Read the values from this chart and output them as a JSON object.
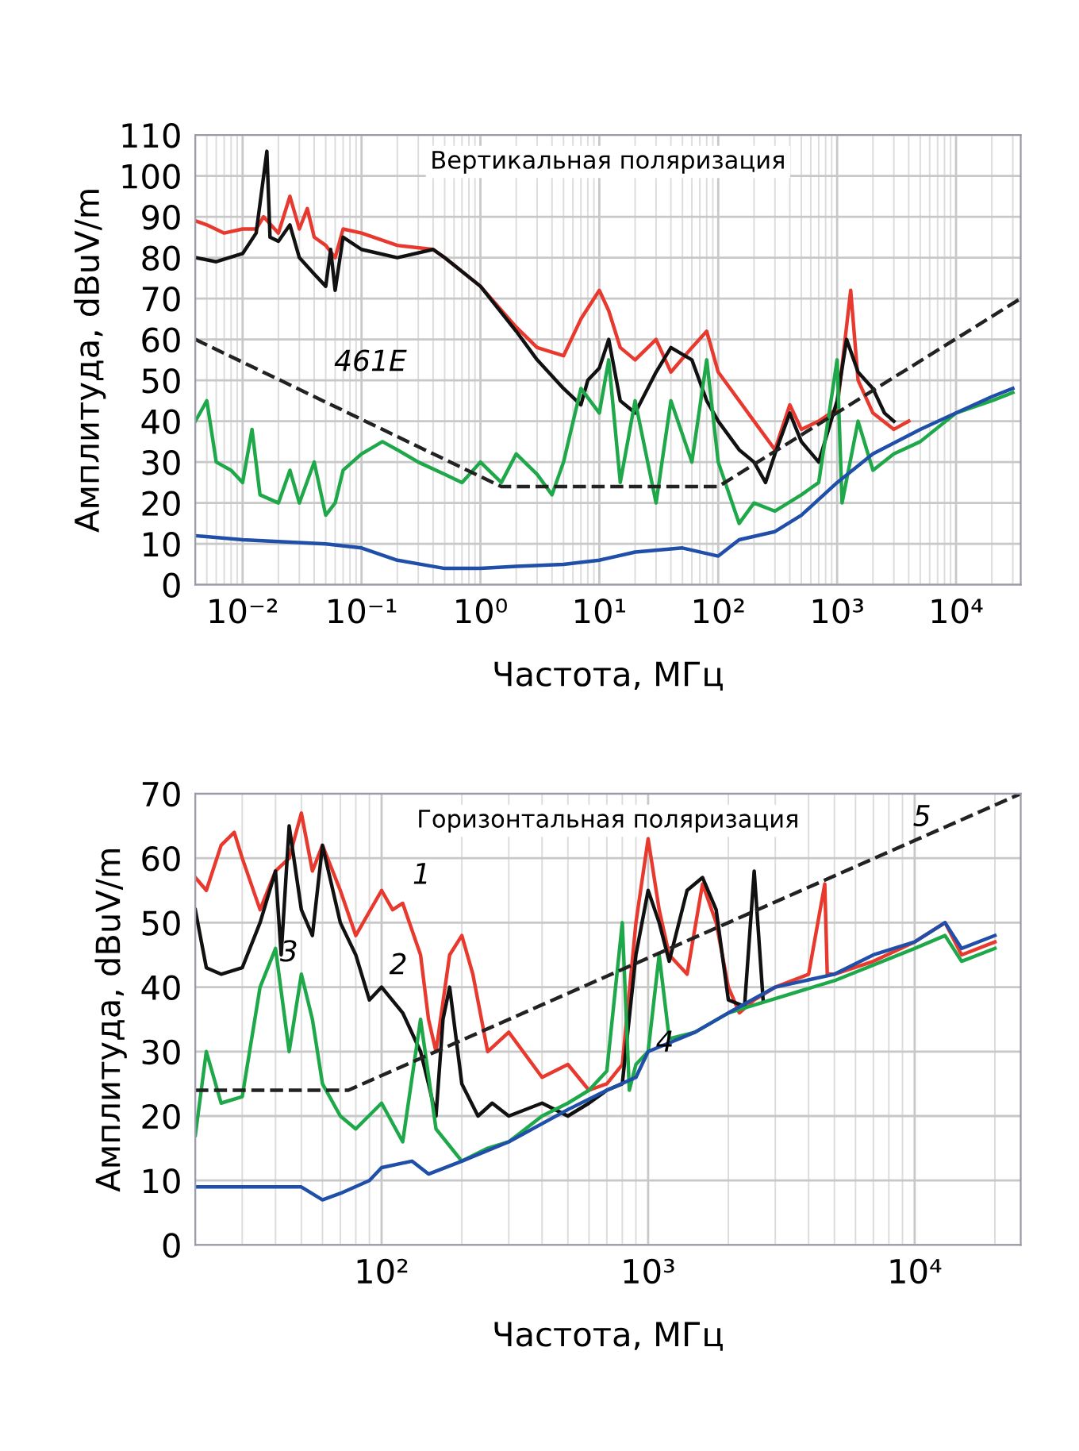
{
  "chart_data": [
    {
      "type": "line",
      "title": "Вертикальная поляризация",
      "xlabel": "Частота, МГц",
      "ylabel": "Амплитуда, dBuV/m",
      "log": "x",
      "grid": true,
      "marker": "none",
      "xlim": [
        0.004,
        35000
      ],
      "xticks": [
        {
          "value": 0.01,
          "label": "10⁻²"
        },
        {
          "value": 0.1,
          "label": "10⁻¹"
        },
        {
          "value": 1,
          "label": "10⁰"
        },
        {
          "value": 10,
          "label": "10¹"
        },
        {
          "value": 100,
          "label": "10²"
        },
        {
          "value": 1000,
          "label": "10³"
        },
        {
          "value": 10000,
          "label": "10⁴"
        }
      ],
      "ylim": [
        0,
        110
      ],
      "yticks": [
        0,
        10,
        20,
        30,
        40,
        50,
        60,
        70,
        80,
        90,
        100,
        110
      ],
      "annotations": [
        {
          "text": "461E",
          "x": 0.04,
          "y": 46
        }
      ],
      "series": [
        {
          "color": "#e8392f",
          "x": [
            0.004,
            0.005,
            0.007,
            0.01,
            0.013,
            0.015,
            0.02,
            0.025,
            0.03,
            0.035,
            0.04,
            0.05,
            0.06,
            0.07,
            0.1,
            0.2,
            0.4,
            0.5,
            1,
            2,
            3,
            5,
            7,
            10,
            12,
            15,
            20,
            30,
            40,
            60,
            80,
            100,
            150,
            200,
            300,
            400,
            500,
            700,
            1000,
            1300,
            1500,
            2000,
            3000,
            4000
          ],
          "values": [
            89,
            88,
            86,
            87,
            87,
            90,
            86,
            95,
            87,
            92,
            85,
            83,
            80,
            87,
            86,
            83,
            82,
            80,
            73,
            63,
            58,
            56,
            65,
            72,
            67,
            58,
            55,
            60,
            52,
            58,
            62,
            52,
            45,
            40,
            33,
            44,
            38,
            40,
            43,
            72,
            50,
            42,
            38,
            40
          ]
        },
        {
          "color": "#111111",
          "x": [
            0.004,
            0.006,
            0.01,
            0.013,
            0.016,
            0.017,
            0.02,
            0.025,
            0.03,
            0.04,
            0.05,
            0.055,
            0.06,
            0.07,
            0.1,
            0.2,
            0.4,
            0.5,
            1,
            2,
            3,
            5,
            7,
            8,
            10,
            12,
            15,
            20,
            30,
            40,
            60,
            80,
            100,
            150,
            200,
            250,
            300,
            400,
            500,
            700,
            1000,
            1200,
            1500,
            2000,
            2500,
            3000
          ],
          "values": [
            80,
            79,
            81,
            86,
            106,
            85,
            84,
            88,
            80,
            76,
            73,
            82,
            72,
            85,
            82,
            80,
            82,
            80,
            73,
            62,
            55,
            48,
            44,
            50,
            53,
            60,
            45,
            42,
            52,
            58,
            55,
            45,
            40,
            33,
            30,
            25,
            32,
            42,
            35,
            30,
            45,
            60,
            52,
            48,
            42,
            40
          ]
        },
        {
          "color": "#1fa84a",
          "x": [
            0.004,
            0.005,
            0.006,
            0.008,
            0.01,
            0.012,
            0.014,
            0.02,
            0.025,
            0.03,
            0.04,
            0.05,
            0.06,
            0.07,
            0.1,
            0.15,
            0.2,
            0.3,
            0.5,
            0.7,
            1,
            1.5,
            2,
            3,
            4,
            5,
            7,
            10,
            12,
            15,
            20,
            30,
            40,
            60,
            80,
            100,
            150,
            200,
            300,
            500,
            700,
            1000,
            1100,
            1500,
            2000,
            3000,
            5000,
            10000,
            20000,
            30000
          ],
          "values": [
            40,
            45,
            30,
            28,
            25,
            38,
            22,
            20,
            28,
            20,
            30,
            17,
            20,
            28,
            32,
            35,
            33,
            30,
            27,
            25,
            30,
            25,
            32,
            27,
            22,
            30,
            48,
            42,
            55,
            25,
            45,
            20,
            45,
            30,
            55,
            30,
            15,
            20,
            18,
            22,
            25,
            55,
            20,
            40,
            28,
            32,
            35,
            42,
            45,
            47
          ]
        },
        {
          "color": "#1f4fa8",
          "x": [
            0.004,
            0.01,
            0.05,
            0.1,
            0.2,
            0.5,
            1,
            2,
            5,
            10,
            20,
            50,
            100,
            150,
            300,
            500,
            1000,
            2000,
            5000,
            10000,
            20000,
            30000
          ],
          "values": [
            12,
            11,
            10,
            9,
            6,
            4,
            4,
            4.5,
            5,
            6,
            8,
            9,
            7,
            11,
            13,
            17,
            25,
            32,
            38,
            42,
            46,
            48
          ]
        },
        {
          "color": "#222222",
          "line_style": "dashed",
          "x": [
            0.004,
            1.5,
            100,
            35000
          ],
          "values": [
            60,
            24,
            24,
            70
          ]
        }
      ]
    },
    {
      "type": "line",
      "title": "Горизонтальная поляризация",
      "xlabel": "Частота, МГц",
      "ylabel": "Амплитуда, dBuV/m",
      "log": "x",
      "grid": true,
      "marker": "none",
      "xlim": [
        20,
        25000
      ],
      "xticks": [
        {
          "value": 100,
          "label": "10²"
        },
        {
          "value": 1000,
          "label": "10³"
        },
        {
          "value": 10000,
          "label": "10⁴"
        }
      ],
      "ylim": [
        0,
        70
      ],
      "yticks": [
        0,
        10,
        20,
        30,
        40,
        50,
        60,
        70
      ],
      "annotations": [
        {
          "text": "1",
          "x": 110,
          "y": 52
        },
        {
          "text": "2",
          "x": 90,
          "y": 38
        },
        {
          "text": "3",
          "x": 35,
          "y": 40
        },
        {
          "text": "4",
          "x": 900,
          "y": 26
        },
        {
          "text": "5",
          "x": 8300,
          "y": 61
        }
      ],
      "series": [
        {
          "color": "#e8392f",
          "x": [
            20,
            22,
            25,
            28,
            30,
            35,
            40,
            45,
            50,
            55,
            60,
            70,
            80,
            100,
            110,
            120,
            140,
            150,
            160,
            180,
            200,
            220,
            250,
            300,
            400,
            500,
            600,
            700,
            800,
            900,
            1000,
            1100,
            1200,
            1400,
            1600,
            1800,
            2000,
            2200,
            2500,
            3000,
            4000,
            4600,
            4700,
            5000,
            7000,
            10000,
            13000,
            15000,
            20000
          ],
          "values": [
            57,
            55,
            62,
            64,
            60,
            52,
            58,
            60,
            67,
            58,
            62,
            55,
            48,
            55,
            52,
            53,
            45,
            35,
            30,
            45,
            48,
            42,
            30,
            33,
            26,
            28,
            24,
            25,
            28,
            50,
            63,
            52,
            45,
            42,
            56,
            50,
            40,
            36,
            38,
            40,
            42,
            56,
            42,
            42,
            44,
            47,
            50,
            45,
            47
          ]
        },
        {
          "color": "#111111",
          "x": [
            20,
            22,
            25,
            30,
            35,
            40,
            42,
            45,
            50,
            55,
            60,
            70,
            80,
            90,
            100,
            120,
            140,
            150,
            160,
            170,
            180,
            200,
            230,
            260,
            300,
            400,
            500,
            600,
            700,
            800,
            900,
            1000,
            1100,
            1200,
            1400,
            1600,
            1800,
            2000,
            2300,
            2500,
            2700
          ],
          "values": [
            52,
            43,
            42,
            43,
            50,
            58,
            45,
            65,
            52,
            48,
            62,
            50,
            45,
            38,
            40,
            36,
            30,
            25,
            20,
            35,
            40,
            25,
            20,
            22,
            20,
            22,
            20,
            22,
            24,
            25,
            45,
            55,
            50,
            44,
            55,
            57,
            52,
            38,
            37,
            58,
            38
          ]
        },
        {
          "color": "#1fa84a",
          "x": [
            20,
            22,
            25,
            30,
            35,
            40,
            45,
            50,
            55,
            60,
            70,
            80,
            100,
            120,
            140,
            160,
            200,
            250,
            300,
            400,
            500,
            600,
            700,
            800,
            850,
            900,
            1000,
            1100,
            1200,
            1500,
            2000,
            5000,
            10000,
            13000,
            15000,
            20000
          ],
          "values": [
            17,
            30,
            22,
            23,
            40,
            46,
            30,
            42,
            35,
            25,
            20,
            18,
            22,
            16,
            35,
            18,
            13,
            15,
            16,
            20,
            22,
            24,
            27,
            50,
            24,
            28,
            30,
            45,
            32,
            33,
            36,
            41,
            46,
            48,
            44,
            46
          ]
        },
        {
          "color": "#1f4fa8",
          "x": [
            20,
            30,
            40,
            50,
            60,
            70,
            90,
            100,
            130,
            150,
            200,
            300,
            500,
            700,
            900,
            1000,
            1500,
            2000,
            3000,
            5000,
            7000,
            10000,
            13000,
            15000,
            20000
          ],
          "values": [
            9,
            9,
            9,
            9,
            7,
            8,
            10,
            12,
            13,
            11,
            13,
            16,
            21,
            24,
            26,
            30,
            33,
            36,
            40,
            42,
            45,
            47,
            50,
            46,
            48
          ]
        },
        {
          "color": "#222222",
          "line_style": "dashed",
          "x": [
            20,
            75,
            25000
          ],
          "values": [
            24,
            24,
            70
          ]
        }
      ]
    }
  ]
}
